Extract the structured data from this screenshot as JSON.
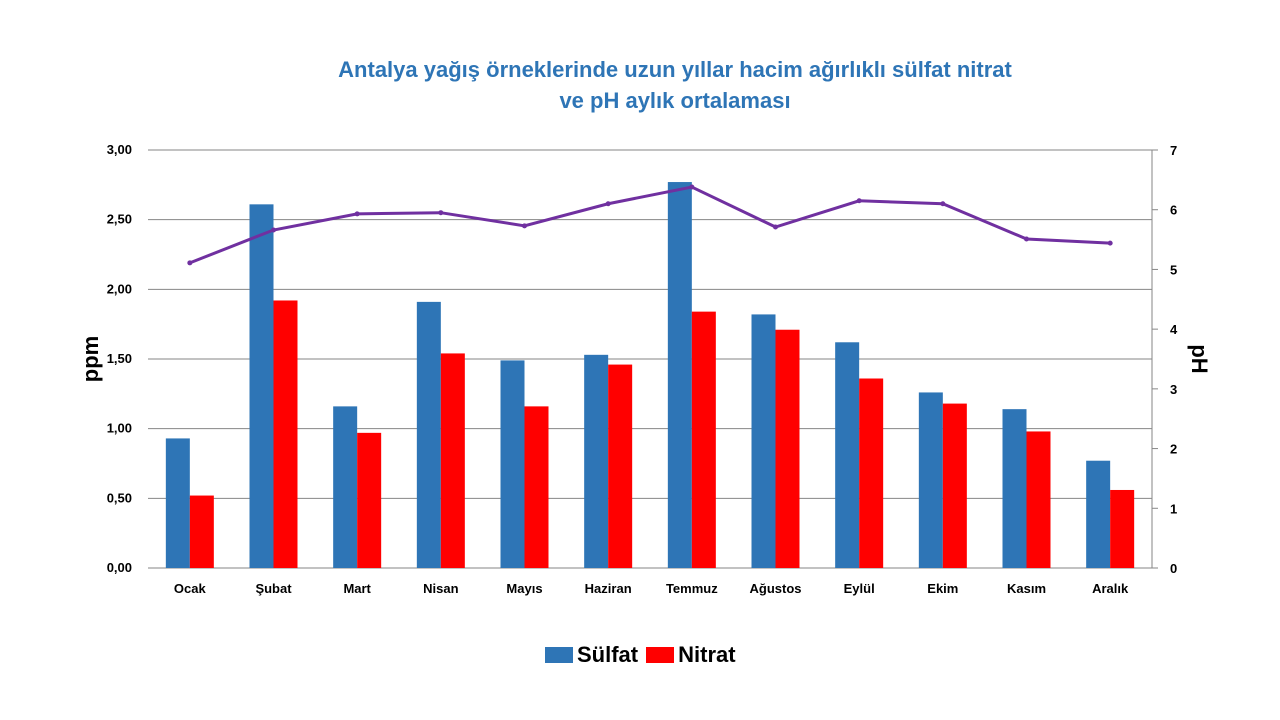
{
  "chart_data": {
    "type": "bar",
    "title_line1": "Antalya yağış örneklerinde uzun yıllar hacim ağırlıklı sülfat nitrat",
    "title_line2": "ve pH aylık ortalaması",
    "categories": [
      "Ocak",
      "Şubat",
      "Mart",
      "Nisan",
      "Mayıs",
      "Haziran",
      "Temmuz",
      "Ağustos",
      "Eylül",
      "Ekim",
      "Kasım",
      "Aralık"
    ],
    "series": [
      {
        "name": "Sülfat",
        "type": "bar",
        "axis": "left",
        "color": "#2e75b6",
        "values": [
          0.93,
          2.61,
          1.16,
          1.91,
          1.49,
          1.53,
          2.77,
          1.82,
          1.62,
          1.26,
          1.14,
          0.77
        ]
      },
      {
        "name": "Nitrat",
        "type": "bar",
        "axis": "left",
        "color": "#ff0000",
        "values": [
          0.52,
          1.92,
          0.97,
          1.54,
          1.16,
          1.46,
          1.84,
          1.71,
          1.36,
          1.18,
          0.98,
          0.56
        ]
      },
      {
        "name": "pH",
        "type": "line",
        "axis": "right",
        "color": "#7030a0",
        "values": [
          5.11,
          5.66,
          5.93,
          5.95,
          5.73,
          6.1,
          6.38,
          5.71,
          6.15,
          6.1,
          5.51,
          5.44
        ]
      }
    ],
    "ylabel": "ppm",
    "y2label": "pH",
    "ylim": [
      0,
      3
    ],
    "y2lim": [
      0,
      7
    ],
    "yticks": [
      "0,00",
      "0,50",
      "1,00",
      "1,50",
      "2,00",
      "2,50",
      "3,00"
    ],
    "y2ticks": [
      "0",
      "1",
      "2",
      "3",
      "4",
      "5",
      "6",
      "7"
    ],
    "grid": true,
    "legend": [
      "Sülfat",
      "Nitrat"
    ],
    "legend_position": "bottom"
  }
}
